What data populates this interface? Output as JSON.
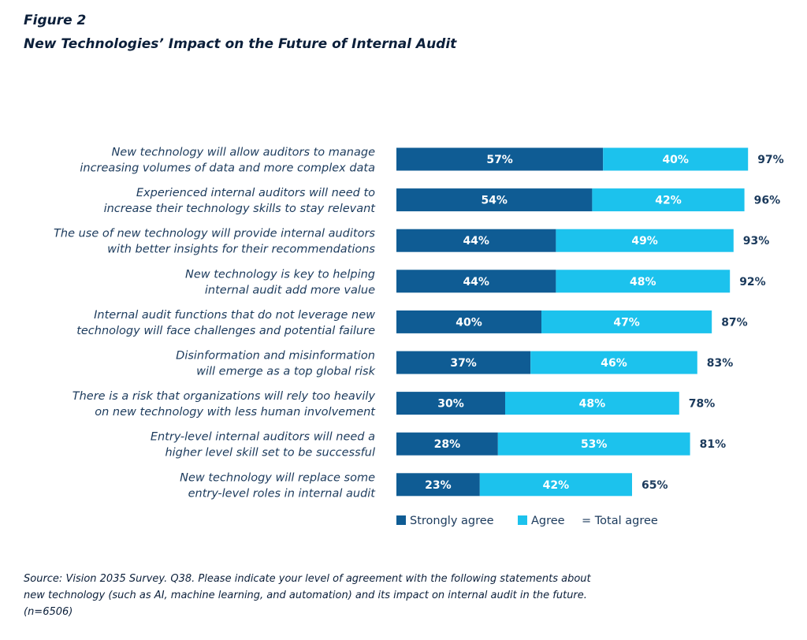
{
  "figure_label": "Figure 2",
  "title": "New Technologies’ Impact on the Future of Internal Audit",
  "source": "Source: Vision 2035 Survey. Q38. Please indicate your level of agreement with the following statements about new technology (such as AI, machine learning, and automation) and its impact on internal audit in the future. (n=6506)",
  "colors": {
    "strongly_agree": "#0f5c94",
    "agree": "#1cc2ed",
    "text": "#1b3a5c"
  },
  "chart_data": {
    "type": "bar",
    "orientation": "horizontal",
    "stacked": true,
    "categories": [
      [
        "New technology will allow auditors to manage",
        "increasing volumes of data and more complex data"
      ],
      [
        "Experienced internal auditors will need to",
        "increase their technology skills to stay relevant"
      ],
      [
        "The use of new technology will provide internal auditors",
        "with better insights for their recommendations"
      ],
      [
        "New technology is key to helping",
        "internal audit add more value"
      ],
      [
        "Internal audit functions that do not leverage new",
        "technology will face challenges and potential failure"
      ],
      [
        "Disinformation and misinformation",
        "will emerge as a top global risk"
      ],
      [
        "There is a risk that organizations will rely too heavily",
        "on new technology with less human involvement"
      ],
      [
        "Entry-level internal auditors will need a",
        "higher level skill set to be successful"
      ],
      [
        "New technology will replace some",
        "entry-level roles in internal audit"
      ]
    ],
    "series": [
      {
        "name": "Strongly agree",
        "values": [
          57,
          54,
          44,
          44,
          40,
          37,
          30,
          28,
          23
        ]
      },
      {
        "name": "Agree",
        "values": [
          40,
          42,
          49,
          48,
          47,
          46,
          48,
          53,
          42
        ]
      }
    ],
    "totals": [
      97,
      96,
      93,
      92,
      87,
      83,
      78,
      81,
      65
    ],
    "total_legend_label": "= Total agree",
    "value_suffix": "%",
    "xlim": [
      0,
      100
    ],
    "legend_position": "bottom",
    "grid": false
  }
}
